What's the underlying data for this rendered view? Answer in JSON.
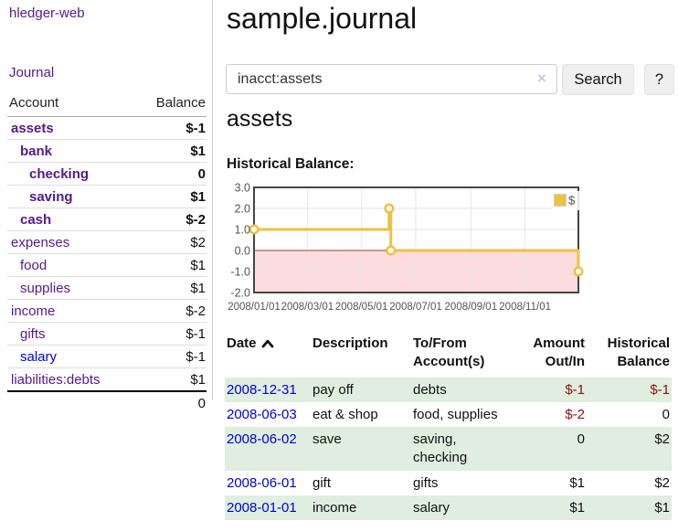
{
  "app": {
    "title": "hledger-web"
  },
  "sidebar": {
    "journal_link": "Journal",
    "accounts": {
      "headers": {
        "account": "Account",
        "balance": "Balance"
      },
      "rows": [
        {
          "name": "assets",
          "indent": 1,
          "bold": true,
          "balance": "$-1",
          "neg": "strong"
        },
        {
          "name": "bank",
          "indent": 2,
          "bold": true,
          "balance": "$1"
        },
        {
          "name": "checking",
          "indent": 3,
          "bold": true,
          "balance": "0"
        },
        {
          "name": "saving",
          "indent": 3,
          "bold": true,
          "balance": "$1"
        },
        {
          "name": "cash",
          "indent": 2,
          "bold": true,
          "balance": "$-2",
          "neg": "strong"
        },
        {
          "name": "expenses",
          "indent": 1,
          "balance": "$2"
        },
        {
          "name": "food",
          "indent": 2,
          "balance": "$1"
        },
        {
          "name": "supplies",
          "indent": 2,
          "balance": "$1"
        },
        {
          "name": "income",
          "indent": 1,
          "balance": "$-2",
          "neg": "muted"
        },
        {
          "name": "gifts",
          "indent": 2,
          "balance": "$-1",
          "neg": "muted"
        },
        {
          "name": "salary",
          "indent": 2,
          "balance": "$-1",
          "neg": "muted",
          "link_state": "unvisited"
        },
        {
          "name": "liabilities:debts",
          "indent": 1,
          "balance": "$1"
        }
      ],
      "total": "0"
    }
  },
  "main": {
    "title": "sample.journal",
    "search": {
      "value": "inacct:assets",
      "clear_label": "×",
      "search_button": "Search",
      "help_button": "?"
    },
    "account_heading": "assets",
    "chart_heading": "Historical Balance:"
  },
  "chart_data": {
    "type": "line",
    "step": "after",
    "title": "Historical Balance",
    "x_domain": [
      "2008-01-01",
      "2008-12-31"
    ],
    "ylim": [
      -2,
      3
    ],
    "yticks": [
      "3.0",
      "2.0",
      "1.0",
      "0.0",
      "-1.0",
      "-2.0"
    ],
    "xticks": [
      "2008/01/01",
      "2008/03/01",
      "2008/05/01",
      "2008/07/01",
      "2008/09/01",
      "2008/11/01"
    ],
    "series": [
      {
        "name": "$",
        "color": "#edc240",
        "points": [
          [
            "2008-01-01",
            1
          ],
          [
            "2008-06-01",
            2
          ],
          [
            "2008-06-03",
            0
          ],
          [
            "2008-12-31",
            -1
          ]
        ]
      }
    ],
    "legend": {
      "position": "top-right",
      "entries": [
        {
          "label": "$",
          "color": "#edc240"
        }
      ]
    },
    "zero_line_color": "#a33a3a",
    "negative_region_color": "#fcdcdc",
    "grid_color": "#e6e6e6",
    "frame_color": "#454545",
    "tick_label_color": "#545454"
  },
  "register": {
    "headers": {
      "date": "Date",
      "description": "Description",
      "accounts": "To/From Account(s)",
      "amount": "Amount Out/In",
      "balance": "Historical Balance"
    },
    "sort": {
      "column": "date",
      "direction": "ascending"
    },
    "rows": [
      {
        "date": "2008-12-31",
        "description": "pay off",
        "accounts": "debts",
        "amount": "$-1",
        "balance": "$-1",
        "amount_neg": true,
        "balance_neg": true
      },
      {
        "date": "2008-06-03",
        "description": "eat & shop",
        "accounts": "food, supplies",
        "amount": "$-2",
        "balance": "0",
        "amount_neg": true
      },
      {
        "date": "2008-06-02",
        "description": "save",
        "accounts": "saving, checking",
        "amount": "0",
        "balance": "$2"
      },
      {
        "date": "2008-06-01",
        "description": "gift",
        "accounts": "gifts",
        "amount": "$1",
        "balance": "$2"
      },
      {
        "date": "2008-01-01",
        "description": "income",
        "accounts": "salary",
        "amount": "$1",
        "balance": "$1"
      }
    ]
  },
  "colors": {
    "link_visited": "#551a8b",
    "link_unvisited": "#0000dd",
    "negative_strong": "#8f1010",
    "negative_muted": "#bf6a6a",
    "row_stripe": "#dfeedf",
    "series_yellow": "#edc240"
  }
}
